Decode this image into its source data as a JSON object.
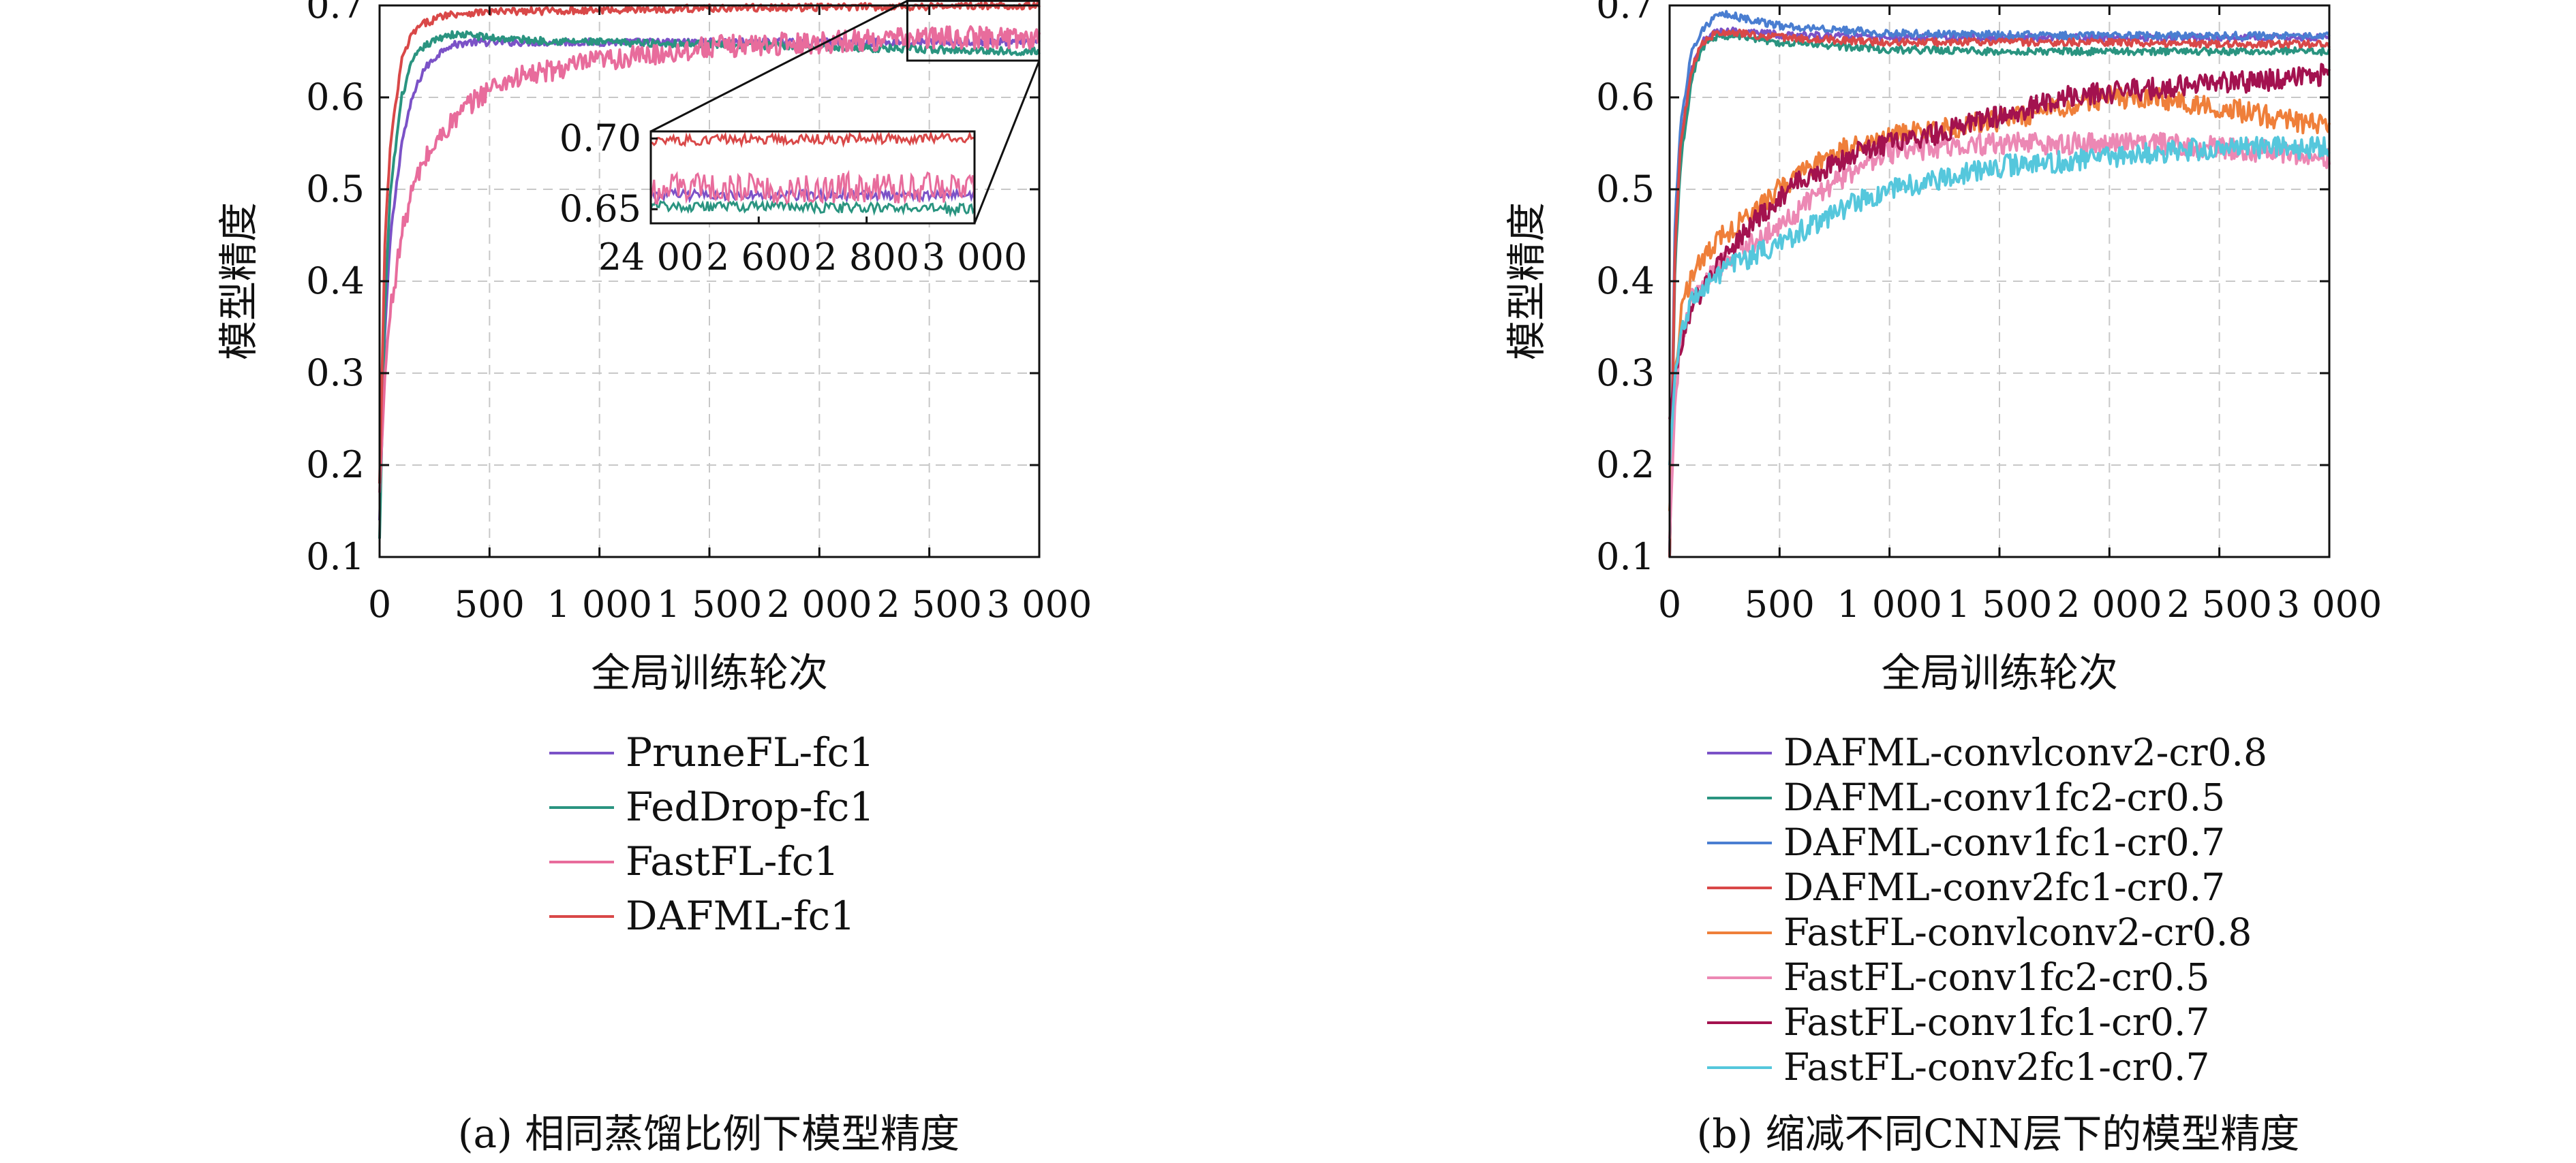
{
  "chart_data": [
    {
      "type": "line",
      "caption": "(a) 相同蒸馏比例下模型精度",
      "xlabel": "全局训练轮次",
      "ylabel": "模型精度",
      "xlim": [
        0,
        3000
      ],
      "ylim": [
        0.1,
        0.7
      ],
      "xticks": [
        0,
        500,
        1000,
        1500,
        2000,
        2500,
        3000
      ],
      "xtick_labels": [
        "0",
        "500",
        "1 000",
        "1 500",
        "2 000",
        "2 500",
        "3 000"
      ],
      "yticks": [
        0.1,
        0.2,
        0.3,
        0.4,
        0.5,
        0.6,
        0.7
      ],
      "ytick_labels": [
        "0.1",
        "0.2",
        "0.3",
        "0.4",
        "0.5",
        "0.6",
        "0.7"
      ],
      "grid": true,
      "legend_position": "below",
      "inset": {
        "xlim": [
          2400,
          3000
        ],
        "ylim": [
          0.64,
          0.705
        ],
        "yticks": [
          0.65,
          0.7
        ],
        "ytick_labels": [
          "0.65",
          "0.70"
        ],
        "xticks": [
          2400,
          2600,
          2800,
          3000
        ],
        "xtick_labels": [
          "24 00",
          "2 600",
          "2 800",
          "3 000"
        ]
      },
      "series": [
        {
          "name": "PruneFL-fc1",
          "color": "#7b52c7",
          "x": [
            0,
            25,
            50,
            100,
            150,
            200,
            300,
            400,
            500,
            700,
            1000,
            1500,
            2000,
            2500,
            3000
          ],
          "y": [
            0.14,
            0.35,
            0.45,
            0.55,
            0.6,
            0.63,
            0.655,
            0.66,
            0.66,
            0.66,
            0.66,
            0.66,
            0.66,
            0.66,
            0.66
          ]
        },
        {
          "name": "FedDrop-fc1",
          "color": "#2a9480",
          "x": [
            0,
            25,
            50,
            100,
            150,
            200,
            300,
            400,
            500,
            700,
            1000,
            1500,
            2000,
            2500,
            3000
          ],
          "y": [
            0.12,
            0.38,
            0.5,
            0.6,
            0.64,
            0.655,
            0.668,
            0.668,
            0.665,
            0.662,
            0.66,
            0.658,
            0.655,
            0.652,
            0.65
          ]
        },
        {
          "name": "FastFL-fc1",
          "color": "#e86c9c",
          "x": [
            0,
            25,
            50,
            100,
            150,
            200,
            300,
            400,
            500,
            600,
            800,
            1000,
            1200,
            1500,
            2000,
            2500,
            3000
          ],
          "y": [
            0.17,
            0.3,
            0.37,
            0.45,
            0.5,
            0.53,
            0.565,
            0.59,
            0.61,
            0.62,
            0.63,
            0.64,
            0.645,
            0.655,
            0.66,
            0.665,
            0.665
          ]
        },
        {
          "name": "DAFML-fc1",
          "color": "#d94848",
          "x": [
            0,
            25,
            50,
            100,
            150,
            200,
            300,
            400,
            500,
            1000,
            1500,
            2000,
            2500,
            3000
          ],
          "y": [
            0.18,
            0.45,
            0.55,
            0.64,
            0.67,
            0.68,
            0.69,
            0.692,
            0.693,
            0.695,
            0.697,
            0.698,
            0.699,
            0.7
          ]
        }
      ]
    },
    {
      "type": "line",
      "caption": "(b) 缩减不同CNN层下的模型精度",
      "xlabel": "全局训练轮次",
      "ylabel": "模型精度",
      "xlim": [
        0,
        3000
      ],
      "ylim": [
        0.1,
        0.7
      ],
      "xticks": [
        0,
        500,
        1000,
        1500,
        2000,
        2500,
        3000
      ],
      "xtick_labels": [
        "0",
        "500",
        "1 000",
        "1 500",
        "2 000",
        "2 500",
        "3 000"
      ],
      "yticks": [
        0.1,
        0.2,
        0.3,
        0.4,
        0.5,
        0.6,
        0.7
      ],
      "ytick_labels": [
        "0.1",
        "0.2",
        "0.3",
        "0.4",
        "0.5",
        "0.6",
        "0.7"
      ],
      "grid": true,
      "legend_position": "below",
      "series": [
        {
          "name": "DAFML-convlconv2-cr0.8",
          "color": "#7b52c7",
          "x": [
            0,
            25,
            50,
            100,
            150,
            200,
            300,
            500,
            1000,
            1500,
            2000,
            2500,
            3000
          ],
          "y": [
            0.1,
            0.45,
            0.55,
            0.63,
            0.66,
            0.67,
            0.672,
            0.668,
            0.665,
            0.665,
            0.665,
            0.665,
            0.665
          ]
        },
        {
          "name": "DAFML-conv1fc2-cr0.5",
          "color": "#2a9480",
          "x": [
            0,
            25,
            50,
            100,
            150,
            200,
            300,
            500,
            1000,
            1500,
            2000,
            2500,
            3000
          ],
          "y": [
            0.1,
            0.42,
            0.53,
            0.62,
            0.655,
            0.665,
            0.668,
            0.66,
            0.652,
            0.65,
            0.65,
            0.65,
            0.65
          ]
        },
        {
          "name": "DAFML-conv1fc1-cr0.7",
          "color": "#4a7ed1",
          "x": [
            0,
            25,
            50,
            100,
            150,
            200,
            250,
            300,
            500,
            1000,
            1500,
            2000,
            2500,
            3000
          ],
          "y": [
            0.1,
            0.47,
            0.57,
            0.65,
            0.675,
            0.685,
            0.69,
            0.688,
            0.678,
            0.67,
            0.668,
            0.667,
            0.667,
            0.667
          ]
        },
        {
          "name": "DAFML-conv2fc1-cr0.7",
          "color": "#d94848",
          "x": [
            0,
            25,
            50,
            100,
            150,
            200,
            300,
            500,
            1000,
            1500,
            2000,
            2500,
            3000
          ],
          "y": [
            0.1,
            0.44,
            0.55,
            0.63,
            0.66,
            0.668,
            0.67,
            0.665,
            0.66,
            0.66,
            0.66,
            0.658,
            0.658
          ]
        },
        {
          "name": "FastFL-convlconv2-cr0.8",
          "color": "#ef7f3a",
          "x": [
            0,
            25,
            50,
            100,
            200,
            300,
            400,
            500,
            600,
            800,
            1000,
            1200,
            1500,
            1800,
            2000,
            2200,
            2500,
            2800,
            3000
          ],
          "y": [
            0.15,
            0.3,
            0.36,
            0.41,
            0.44,
            0.46,
            0.48,
            0.5,
            0.52,
            0.545,
            0.56,
            0.565,
            0.575,
            0.59,
            0.6,
            0.6,
            0.59,
            0.575,
            0.57
          ]
        },
        {
          "name": "FastFL-conv1fc2-cr0.5",
          "color": "#ec88b4",
          "x": [
            0,
            25,
            50,
            100,
            200,
            300,
            500,
            700,
            900,
            1000,
            1200,
            1500,
            1800,
            2000,
            2200,
            2500,
            2800,
            3000
          ],
          "y": [
            0.12,
            0.27,
            0.33,
            0.38,
            0.41,
            0.43,
            0.46,
            0.5,
            0.53,
            0.54,
            0.545,
            0.55,
            0.55,
            0.55,
            0.55,
            0.545,
            0.54,
            0.535
          ]
        },
        {
          "name": "FastFL-conv1fc1-cr0.7",
          "color": "#a3124f",
          "x": [
            0,
            25,
            50,
            100,
            200,
            300,
            400,
            500,
            600,
            700,
            800,
            1000,
            1200,
            1500,
            1800,
            2000,
            2200,
            2500,
            2800,
            3000
          ],
          "y": [
            0.25,
            0.3,
            0.33,
            0.37,
            0.41,
            0.44,
            0.47,
            0.49,
            0.51,
            0.52,
            0.535,
            0.55,
            0.56,
            0.58,
            0.6,
            0.605,
            0.61,
            0.615,
            0.62,
            0.625
          ]
        },
        {
          "name": "FastFL-conv2fc1-cr0.7",
          "color": "#55c7dc",
          "x": [
            0,
            25,
            50,
            100,
            200,
            300,
            400,
            500,
            600,
            700,
            800,
            1000,
            1200,
            1500,
            1800,
            2000,
            2200,
            2500,
            2800,
            3000
          ],
          "y": [
            0.2,
            0.3,
            0.34,
            0.38,
            0.4,
            0.42,
            0.43,
            0.44,
            0.455,
            0.465,
            0.48,
            0.5,
            0.51,
            0.525,
            0.53,
            0.535,
            0.54,
            0.545,
            0.545,
            0.545
          ]
        }
      ]
    }
  ]
}
